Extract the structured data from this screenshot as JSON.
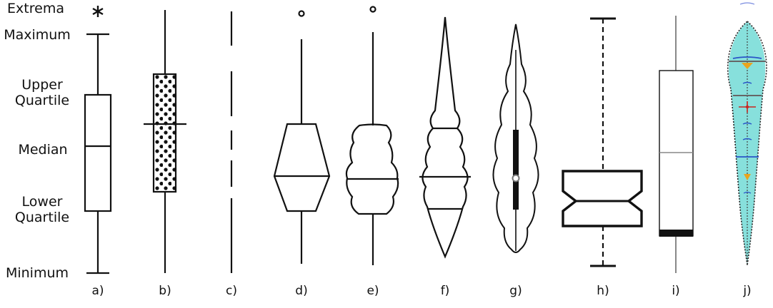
{
  "labels": {
    "extrema": "Extrema",
    "maximum": "Maximum",
    "upper_quartile": "Upper\nQuartile",
    "median": "Median",
    "lower_quartile": "Lower\nQuartile",
    "minimum": "Minimum"
  },
  "panels": [
    "a)",
    "b)",
    "c)",
    "d)",
    "e)",
    "f)",
    "g)",
    "h)",
    "i)",
    "j)"
  ],
  "colors": {
    "ink": "#111111",
    "gray_box": "#888888",
    "teal_fill": "#5fd6d0",
    "blue_marks": "#2a55c8",
    "orange_marks": "#e9a41e",
    "red_marks": "#c8251f"
  }
}
